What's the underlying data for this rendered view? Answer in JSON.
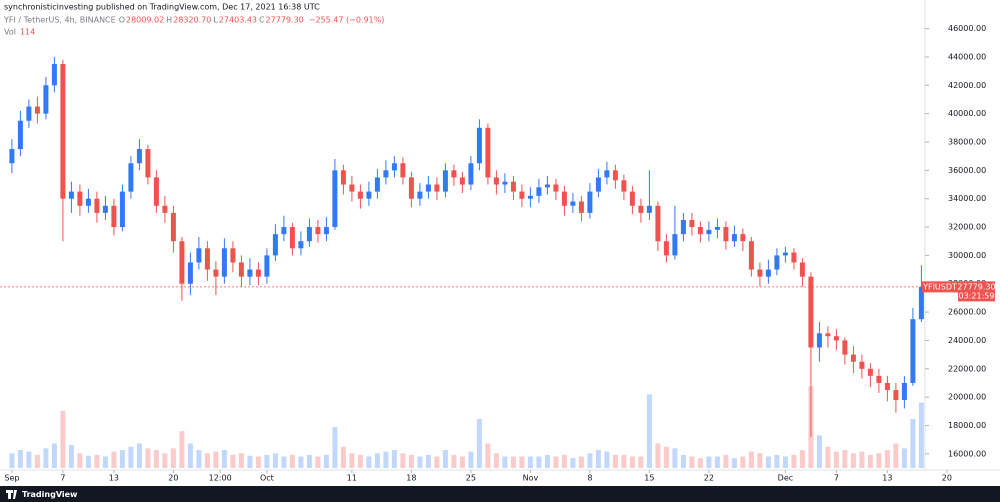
{
  "chart_data": {
    "type": "candlestick",
    "publisher_line": "synchronisticinvesting published on TradingView.com, Dec 17, 2021 16:38 UTC",
    "symbol_line": "YFI / TetherUS, 4h, BINANCE",
    "ohlc_legend": [
      {
        "key": "O",
        "text": "28009.02"
      },
      {
        "key": "H",
        "text": "28320.70"
      },
      {
        "key": "L",
        "text": "27403.43"
      },
      {
        "key": "C",
        "text": "27779.30"
      }
    ],
    "change_text": "−255.47 (−0.91%)",
    "volume_legend": {
      "key": "Vol",
      "text": "114"
    },
    "up_color": "#3179f5",
    "down_color": "#ef5350",
    "open": [
      36500,
      37500,
      39500,
      40500,
      40000,
      42000,
      43500,
      34000,
      34500,
      33500,
      34000,
      33000,
      33500,
      32000,
      34500,
      36500,
      37500,
      35500,
      33500,
      33000,
      31000,
      28000,
      29500,
      30500,
      29000,
      28500,
      30500,
      29500,
      28500,
      29000,
      28500,
      30000,
      31500,
      32000,
      30500,
      31000,
      32000,
      31500,
      32000,
      36000,
      35000,
      34500,
      34000,
      34500,
      35500,
      36000,
      36500,
      35500,
      34000,
      34500,
      35000,
      34500,
      36000,
      35500,
      35000,
      36500,
      39000,
      35500,
      35000,
      35200,
      34500,
      34000,
      34200,
      34800,
      35000,
      34500,
      33500,
      33800,
      33000,
      34500,
      35500,
      36000,
      35300,
      34500,
      33500,
      33000,
      33500,
      31000,
      30000,
      31500,
      32500,
      32000,
      31500,
      31800,
      32000,
      31000,
      31500,
      31000,
      29000,
      28500,
      29000,
      30000,
      30200,
      29500,
      28500,
      23500,
      24500,
      24300,
      24000,
      23000,
      22500,
      22000,
      21500,
      21000,
      20500,
      19800,
      21000,
      25500
    ],
    "high": [
      38200,
      40200,
      41000,
      41200,
      42600,
      44000,
      43800,
      35200,
      35000,
      34700,
      34500,
      34200,
      34000,
      35000,
      37000,
      38200,
      37800,
      36000,
      34200,
      33500,
      31300,
      30200,
      31300,
      31000,
      29600,
      31200,
      31000,
      30000,
      29800,
      29500,
      30500,
      32200,
      32800,
      32300,
      31700,
      32600,
      32500,
      32700,
      36800,
      36400,
      35600,
      35000,
      35200,
      36100,
      36700,
      37000,
      36900,
      35900,
      35100,
      35600,
      35500,
      36500,
      36400,
      35900,
      37000,
      39600,
      39300,
      36000,
      35800,
      35600,
      35000,
      34800,
      35400,
      35600,
      35400,
      34900,
      34400,
      34200,
      35100,
      36100,
      36600,
      36400,
      35700,
      34900,
      34000,
      36000,
      33800,
      31500,
      33500,
      33000,
      33000,
      32400,
      32400,
      32600,
      32400,
      32100,
      31900,
      31300,
      29500,
      29700,
      30500,
      30600,
      30500,
      29800,
      28800,
      25300,
      25000,
      24800,
      24200,
      23600,
      23000,
      22400,
      22000,
      21500,
      21000,
      21500,
      26300,
      29300
    ],
    "low": [
      35800,
      37000,
      39000,
      39300,
      39600,
      41500,
      31000,
      33000,
      32800,
      33000,
      32300,
      32500,
      31400,
      31700,
      34000,
      36000,
      35000,
      33000,
      32300,
      30200,
      26800,
      27200,
      29000,
      28200,
      27200,
      28000,
      28800,
      27800,
      27900,
      27900,
      28000,
      29600,
      31000,
      30000,
      30000,
      30600,
      30900,
      31000,
      31800,
      34300,
      33800,
      33300,
      33500,
      34000,
      35000,
      35500,
      35000,
      33400,
      33500,
      34000,
      33900,
      34100,
      34900,
      34400,
      34600,
      36000,
      35000,
      34300,
      34400,
      33900,
      33400,
      33400,
      33700,
      34300,
      33900,
      32800,
      33000,
      32400,
      32600,
      34100,
      35000,
      34700,
      33900,
      32900,
      32300,
      32500,
      30300,
      29500,
      29700,
      31000,
      31400,
      30900,
      31000,
      31200,
      30400,
      30600,
      30300,
      28500,
      27800,
      28000,
      28600,
      29500,
      29000,
      27800,
      17200,
      22500,
      23500,
      23300,
      22300,
      21700,
      21300,
      20700,
      20300,
      19700,
      18900,
      19200,
      20800,
      25300
    ],
    "close": [
      37500,
      39500,
      40500,
      40000,
      42000,
      43500,
      34000,
      34500,
      33500,
      34000,
      33000,
      33500,
      32000,
      34500,
      36500,
      37500,
      35500,
      33500,
      33000,
      31000,
      28000,
      29500,
      30500,
      29000,
      28500,
      30500,
      29500,
      28500,
      29000,
      28500,
      30000,
      31500,
      32000,
      30500,
      31000,
      32000,
      31500,
      32000,
      36000,
      35000,
      34500,
      34000,
      34500,
      35500,
      36000,
      36500,
      35500,
      34000,
      34500,
      35000,
      34500,
      36000,
      35500,
      35000,
      36500,
      39000,
      35500,
      35000,
      35200,
      34500,
      34000,
      34200,
      34800,
      35000,
      34500,
      33500,
      33800,
      33000,
      34500,
      35500,
      36000,
      35300,
      34500,
      33500,
      33000,
      33500,
      31000,
      30000,
      31500,
      32500,
      32000,
      31500,
      31800,
      32000,
      31000,
      31500,
      31000,
      29000,
      28500,
      29000,
      30000,
      30200,
      29500,
      28500,
      23500,
      24500,
      24300,
      24000,
      23000,
      22500,
      22000,
      21500,
      21000,
      20500,
      19800,
      21000,
      25500,
      27779.3
    ],
    "volume": [
      18,
      22,
      20,
      16,
      24,
      30,
      70,
      28,
      18,
      15,
      16,
      14,
      20,
      22,
      26,
      30,
      24,
      22,
      18,
      24,
      45,
      30,
      22,
      18,
      20,
      22,
      16,
      18,
      15,
      14,
      16,
      18,
      14,
      16,
      14,
      16,
      14,
      16,
      50,
      26,
      18,
      16,
      14,
      18,
      20,
      22,
      18,
      16,
      14,
      16,
      14,
      22,
      16,
      14,
      20,
      60,
      30,
      18,
      14,
      14,
      14,
      14,
      14,
      16,
      14,
      16,
      12,
      14,
      18,
      22,
      20,
      16,
      16,
      14,
      14,
      90,
      30,
      26,
      24,
      16,
      14,
      12,
      14,
      14,
      16,
      12,
      14,
      20,
      18,
      14,
      16,
      14,
      16,
      22,
      100,
      40,
      26,
      20,
      22,
      18,
      20,
      16,
      18,
      22,
      30,
      24,
      60,
      80
    ],
    "volume_ylim": [
      0,
      110
    ],
    "xlim": [
      -1.4,
      110.6
    ],
    "xticks": [
      {
        "value": 0,
        "label": "Sep"
      },
      {
        "value": 6,
        "label": "7"
      },
      {
        "value": 12,
        "label": "13"
      },
      {
        "value": 19,
        "label": "20"
      },
      {
        "value": 24.5,
        "label": "12:00"
      },
      {
        "value": 30,
        "label": "Oct"
      },
      {
        "value": 40,
        "label": "11"
      },
      {
        "value": 47,
        "label": "18"
      },
      {
        "value": 54,
        "label": "25"
      },
      {
        "value": 61,
        "label": "Nov"
      },
      {
        "value": 68,
        "label": "8"
      },
      {
        "value": 75,
        "label": "15"
      },
      {
        "value": 82,
        "label": "22"
      },
      {
        "value": 91,
        "label": "Dec"
      },
      {
        "value": 97,
        "label": "7"
      },
      {
        "value": 103,
        "label": "13"
      },
      {
        "value": 110,
        "label": "20"
      }
    ],
    "ylim": [
      15000,
      47100
    ],
    "yticks": [
      {
        "value": 16000,
        "label": "16000.00"
      },
      {
        "value": 18000,
        "label": "18000.00"
      },
      {
        "value": 20000,
        "label": "20000.00"
      },
      {
        "value": 22000,
        "label": "22000.00"
      },
      {
        "value": 24000,
        "label": "24000.00"
      },
      {
        "value": 26000,
        "label": "26000.00"
      },
      {
        "value": 28000,
        "label": "28000.00"
      },
      {
        "value": 30000,
        "label": "30000.00"
      },
      {
        "value": 32000,
        "label": "32000.00"
      },
      {
        "value": 34000,
        "label": "34000.00"
      },
      {
        "value": 36000,
        "label": "36000.00"
      },
      {
        "value": 38000,
        "label": "38000.00"
      },
      {
        "value": 40000,
        "label": "40000.00"
      },
      {
        "value": 42000,
        "label": "42000.00"
      },
      {
        "value": 44000,
        "label": "44000.00"
      },
      {
        "value": 46000,
        "label": "46000.00"
      }
    ],
    "grid": false,
    "last_price": {
      "value": 27779.3,
      "label": "27779.30",
      "symbol": "YFIUSDT",
      "countdown": "03:21:59"
    },
    "brand": "TradingView"
  }
}
